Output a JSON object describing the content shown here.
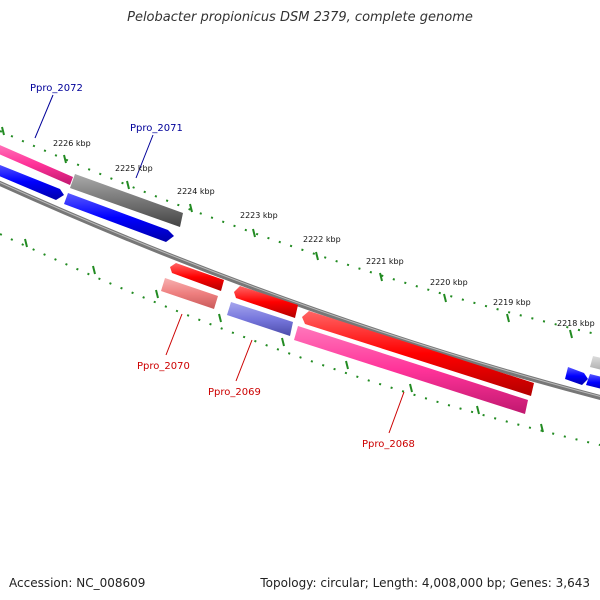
{
  "header": {
    "title": "Pelobacter propionicus DSM 2379, complete genome"
  },
  "footer": {
    "accession": "Accession: NC_008609",
    "summary": "Topology: circular; Length: 4,008,000 bp; Genes: 3,643"
  },
  "colors": {
    "strand_plus": "#0000ff",
    "gene_red": "#ff0000",
    "gene_pink": "#ff3399",
    "gene_gray": "#666666",
    "tick_green": "#228b22",
    "label_blue": "#000099",
    "label_red": "#cc0000"
  },
  "ticks": [
    "2226 kbp",
    "2225 kbp",
    "2224 kbp",
    "2223 kbp",
    "2222 kbp",
    "2221 kbp",
    "2220 kbp",
    "2219 kbp",
    "2218 kbp"
  ],
  "gene_labels": [
    {
      "text": "Ppro_2072",
      "color": "blue"
    },
    {
      "text": "Ppro_2071",
      "color": "blue"
    },
    {
      "text": "Ppro_2070",
      "color": "red"
    },
    {
      "text": "Ppro_2069",
      "color": "red"
    },
    {
      "text": "Ppro_2068",
      "color": "red"
    }
  ]
}
